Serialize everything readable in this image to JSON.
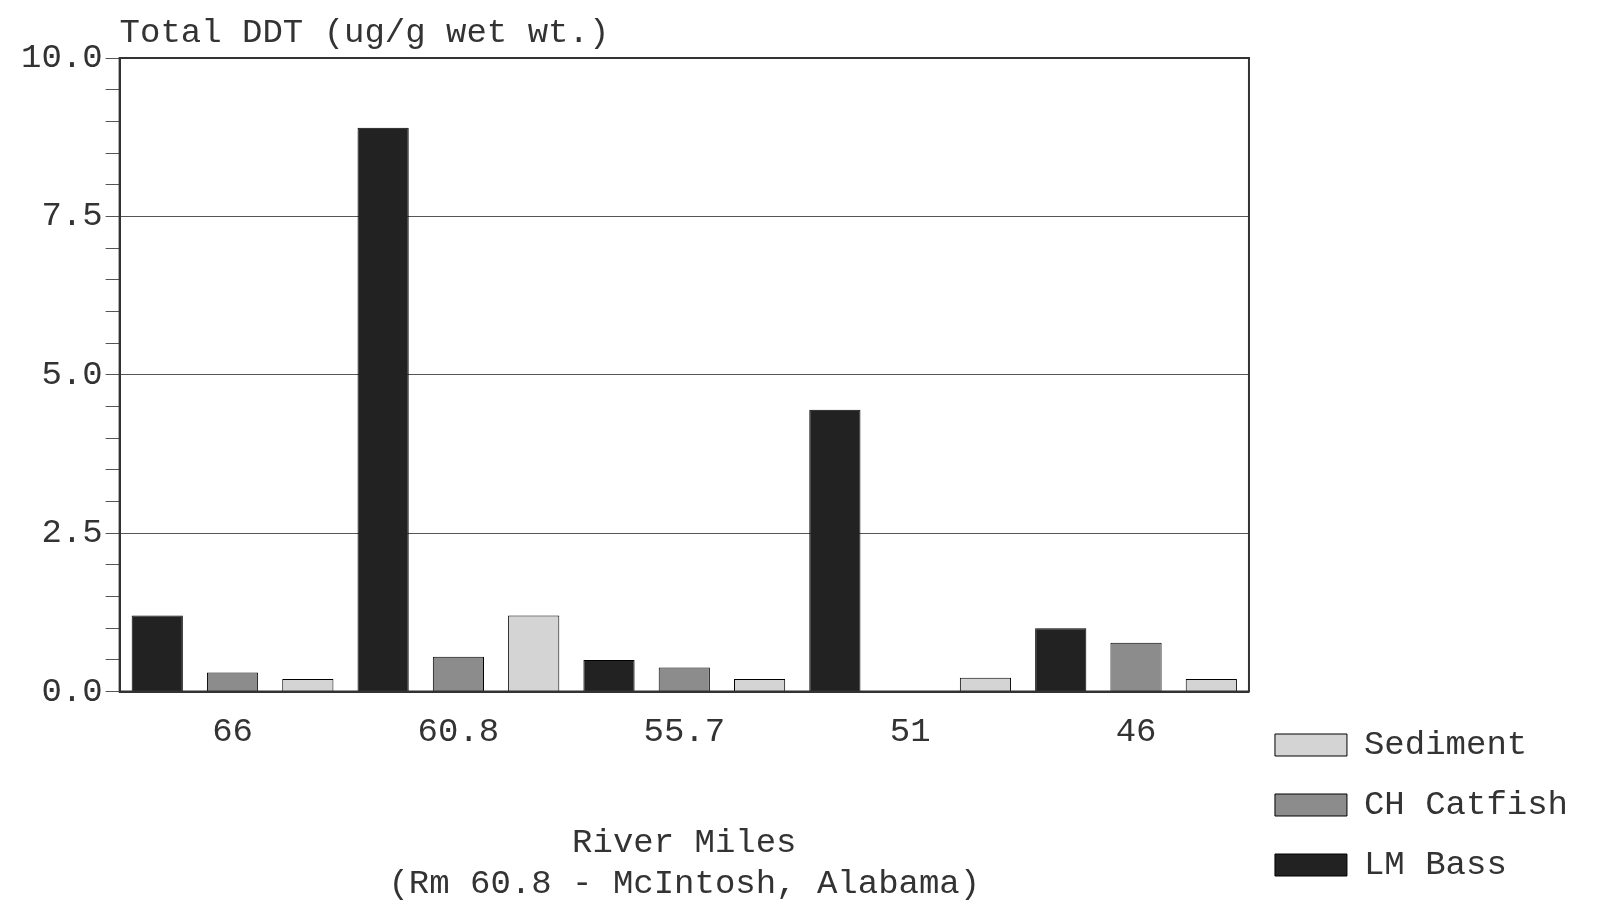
{
  "chart_data": {
    "type": "bar",
    "ylabel": "Total DDT (ug/g wet wt.)",
    "xlabel": "River Miles\n(Rm 60.8 - McIntosh, Alabama)",
    "categories": [
      "66",
      "60.8",
      "55.7",
      "51",
      "46"
    ],
    "series": [
      {
        "name": "LM Bass",
        "color": "#222222",
        "values": [
          1.2,
          8.9,
          0.5,
          4.45,
          1.0
        ]
      },
      {
        "name": "CH Catfish",
        "color": "#8c8c8c",
        "values": [
          0.3,
          0.55,
          0.38,
          null,
          0.77
        ]
      },
      {
        "name": "Sediment",
        "color": "#d4d4d4",
        "values": [
          0.2,
          1.2,
          0.2,
          0.22,
          0.2
        ]
      }
    ],
    "ylim": [
      0,
      10
    ],
    "yticks": [
      {
        "value": 0,
        "label": "0.0"
      },
      {
        "value": 0.5,
        "label": null
      },
      {
        "value": 1,
        "label": null
      },
      {
        "value": 1.5,
        "label": null
      },
      {
        "value": 2,
        "label": null
      },
      {
        "value": 2.5,
        "label": "2.5"
      },
      {
        "value": 3,
        "label": null
      },
      {
        "value": 3.5,
        "label": null
      },
      {
        "value": 4,
        "label": null
      },
      {
        "value": 4.5,
        "label": null
      },
      {
        "value": 5,
        "label": "5.0"
      },
      {
        "value": 5.5,
        "label": null
      },
      {
        "value": 6,
        "label": null
      },
      {
        "value": 6.5,
        "label": null
      },
      {
        "value": 7,
        "label": null
      },
      {
        "value": 7.5,
        "label": "7.5"
      },
      {
        "value": 8,
        "label": null
      },
      {
        "value": 8.5,
        "label": null
      },
      {
        "value": 9,
        "label": null
      },
      {
        "value": 9.5,
        "label": null
      },
      {
        "value": 10,
        "label": "10.0"
      }
    ],
    "grid": "y",
    "legend": "right"
  }
}
